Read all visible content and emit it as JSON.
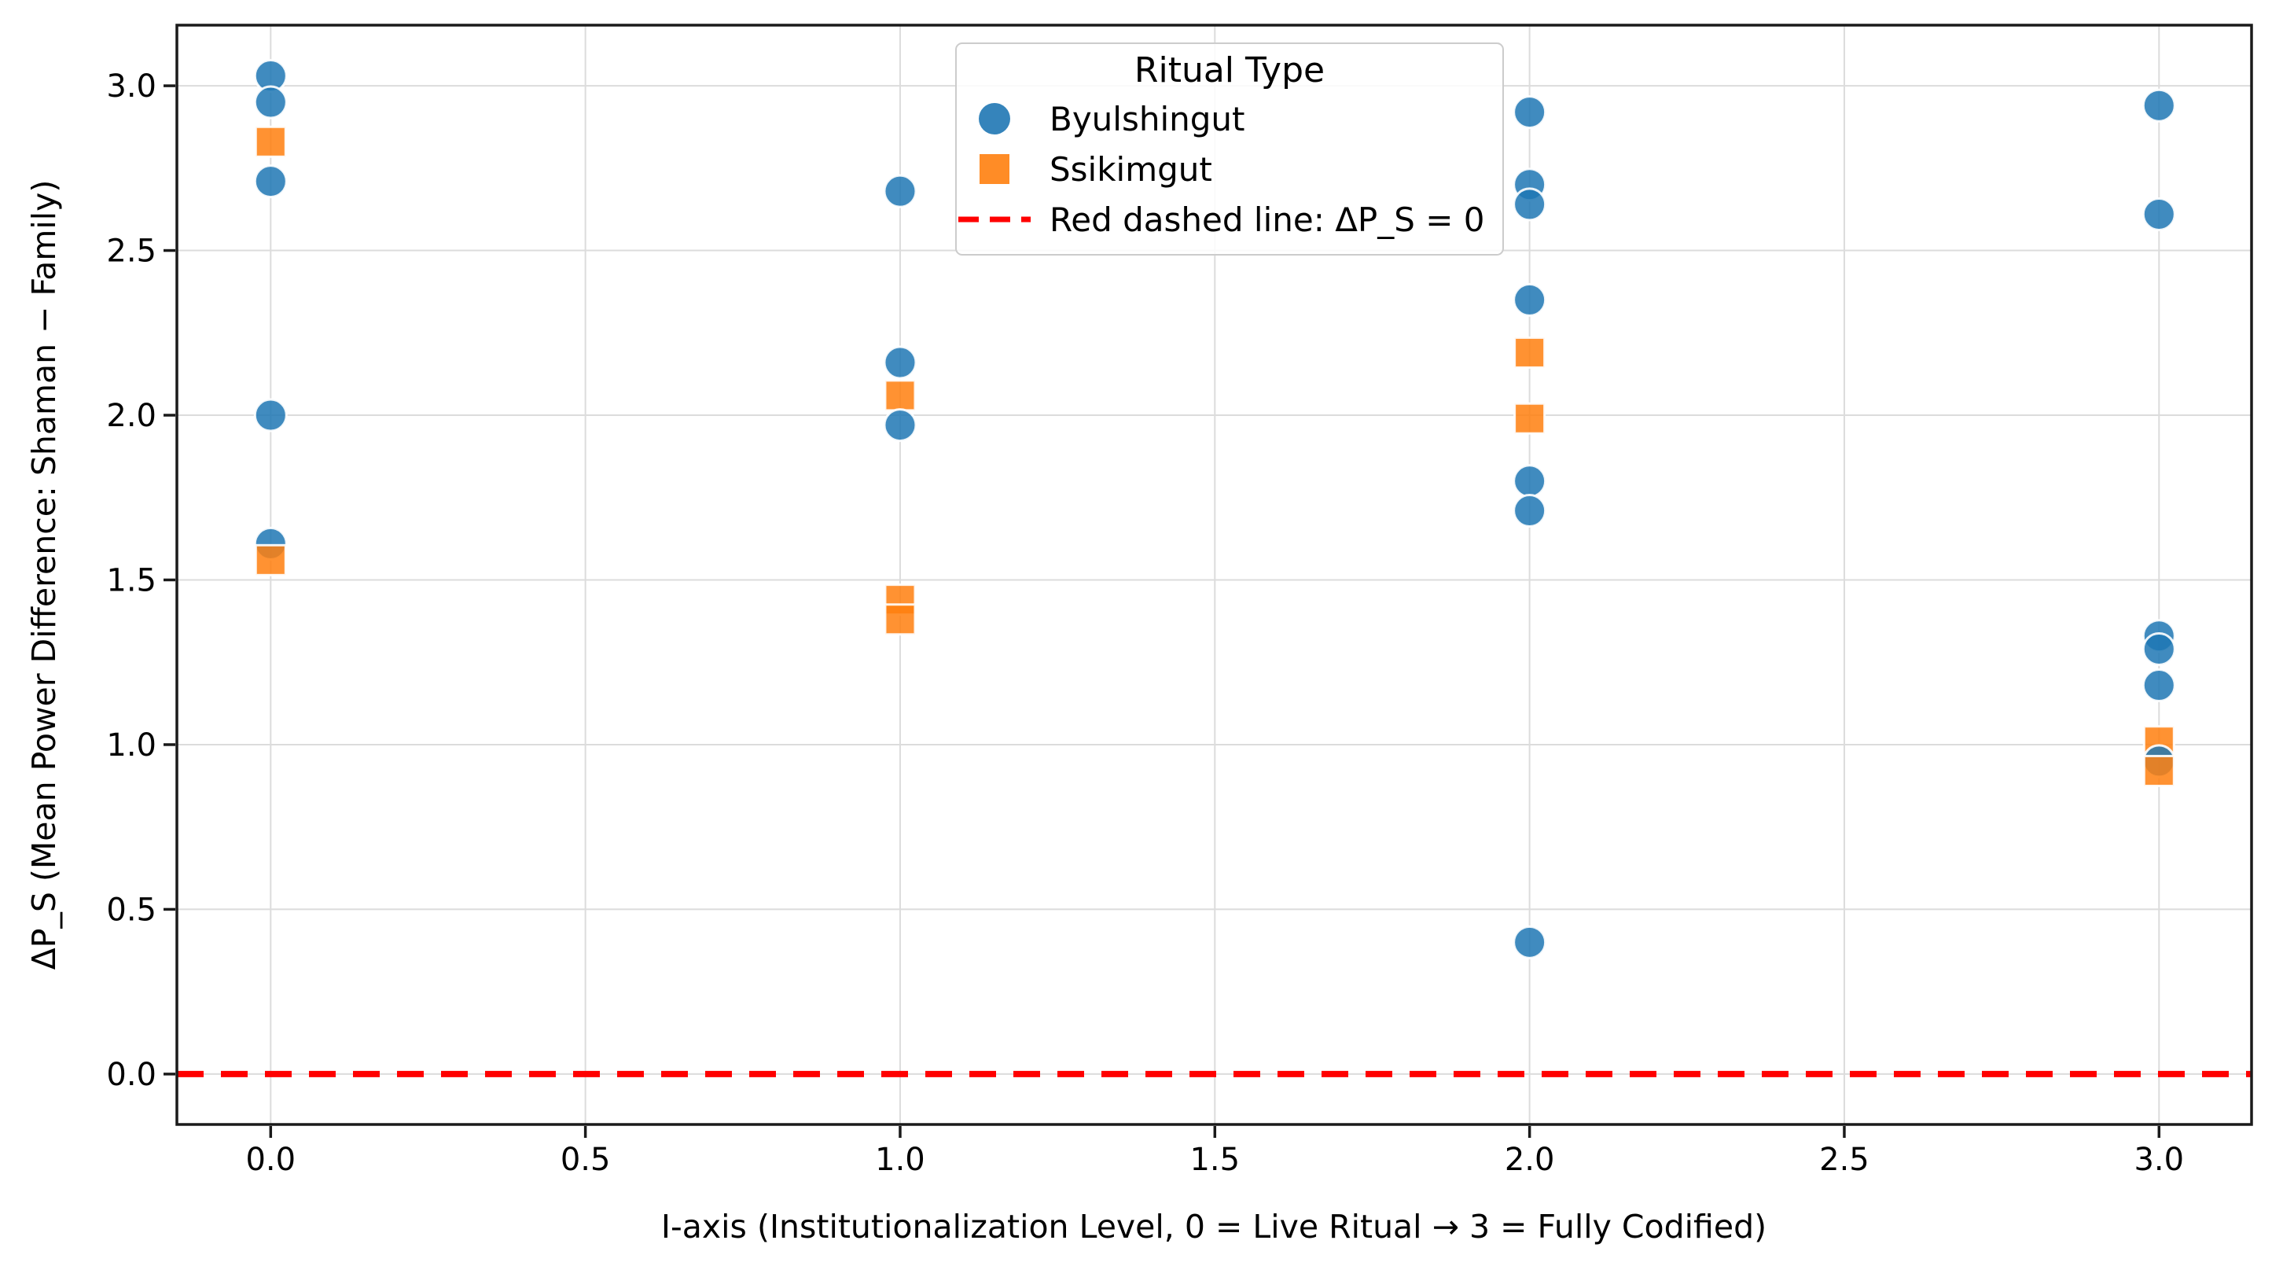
{
  "chart_data": {
    "type": "scatter",
    "title": "",
    "xlabel": "I-axis (Institutionalization Level, 0 = Live Ritual → 3 = Fully Codified)",
    "ylabel": "ΔP_S (Mean Power Difference: Shaman − Family)",
    "xlim": [
      -0.149,
      3.147
    ],
    "ylim": [
      -0.153,
      3.184
    ],
    "x_ticks": [
      0.0,
      0.5,
      1.0,
      1.5,
      2.0,
      2.5,
      3.0
    ],
    "y_ticks": [
      0.0,
      0.5,
      1.0,
      1.5,
      2.0,
      2.5,
      3.0
    ],
    "grid": true,
    "grid_color": "#dcdcdc",
    "background": "#ffffff",
    "legend": {
      "title": "Ritual Type",
      "position": "upper center"
    },
    "series": [
      {
        "name": "Byulshingut",
        "marker": "circle",
        "color": "#1f77b4",
        "points": [
          [
            0,
            3.03
          ],
          [
            0,
            2.95
          ],
          [
            0,
            2.71
          ],
          [
            0,
            2.0
          ],
          [
            0,
            1.61
          ],
          [
            1,
            2.68
          ],
          [
            1,
            2.16
          ],
          [
            1,
            1.97
          ],
          [
            2,
            2.92
          ],
          [
            2,
            2.7
          ],
          [
            2,
            2.64
          ],
          [
            2,
            2.35
          ],
          [
            2,
            1.8
          ],
          [
            2,
            1.71
          ],
          [
            2,
            0.4
          ],
          [
            3,
            2.94
          ],
          [
            3,
            2.61
          ],
          [
            3,
            1.33
          ],
          [
            3,
            1.29
          ],
          [
            3,
            1.18
          ],
          [
            3,
            0.95
          ]
        ]
      },
      {
        "name": "Ssikimgut",
        "marker": "square",
        "color": "#ff7f0e",
        "points": [
          [
            0,
            2.83
          ],
          [
            0,
            1.56
          ],
          [
            1,
            2.06
          ],
          [
            1,
            1.44
          ],
          [
            1,
            1.38
          ],
          [
            2,
            2.19
          ],
          [
            2,
            1.99
          ],
          [
            3,
            1.01
          ],
          [
            3,
            0.92
          ]
        ]
      }
    ],
    "reference_line": {
      "label": "Red dashed line: ΔP_S = 0",
      "y": 0.0,
      "color": "#ff0000",
      "style": "dashed"
    }
  }
}
